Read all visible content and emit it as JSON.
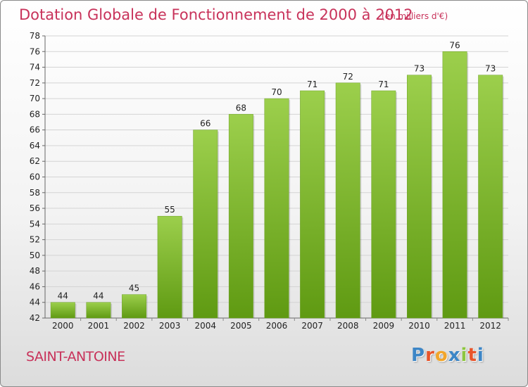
{
  "header": {
    "title": "Dotation Globale de Fonctionnement de 2000 à 2012",
    "unit": "(en milliers d'€)"
  },
  "footer": {
    "commune": "SAINT-ANTOINE",
    "logo": {
      "text": "Proxiti",
      "letter_colors": [
        "#3d86c6",
        "#e8542a",
        "#f2a52b",
        "#3d86c6",
        "#8dc63f",
        "#e8542a",
        "#3d86c6"
      ]
    }
  },
  "chart_data": {
    "type": "bar",
    "title": "Dotation Globale de Fonctionnement de 2000 à 2012",
    "xlabel": "",
    "ylabel": "",
    "categories": [
      "2000",
      "2001",
      "2002",
      "2003",
      "2004",
      "2005",
      "2006",
      "2007",
      "2008",
      "2009",
      "2010",
      "2011",
      "2012"
    ],
    "values": [
      44,
      44,
      45,
      55,
      66,
      68,
      70,
      71,
      72,
      71,
      73,
      76,
      73
    ],
    "ylim": [
      42,
      78
    ],
    "yticks": [
      42,
      44,
      46,
      48,
      50,
      52,
      54,
      56,
      58,
      60,
      62,
      64,
      66,
      68,
      70,
      72,
      74,
      76,
      78
    ],
    "grid": true,
    "bar_color_top": "#9ccf4c",
    "bar_color_bottom": "#5f9a12",
    "grid_color": "#d4d4d4"
  }
}
